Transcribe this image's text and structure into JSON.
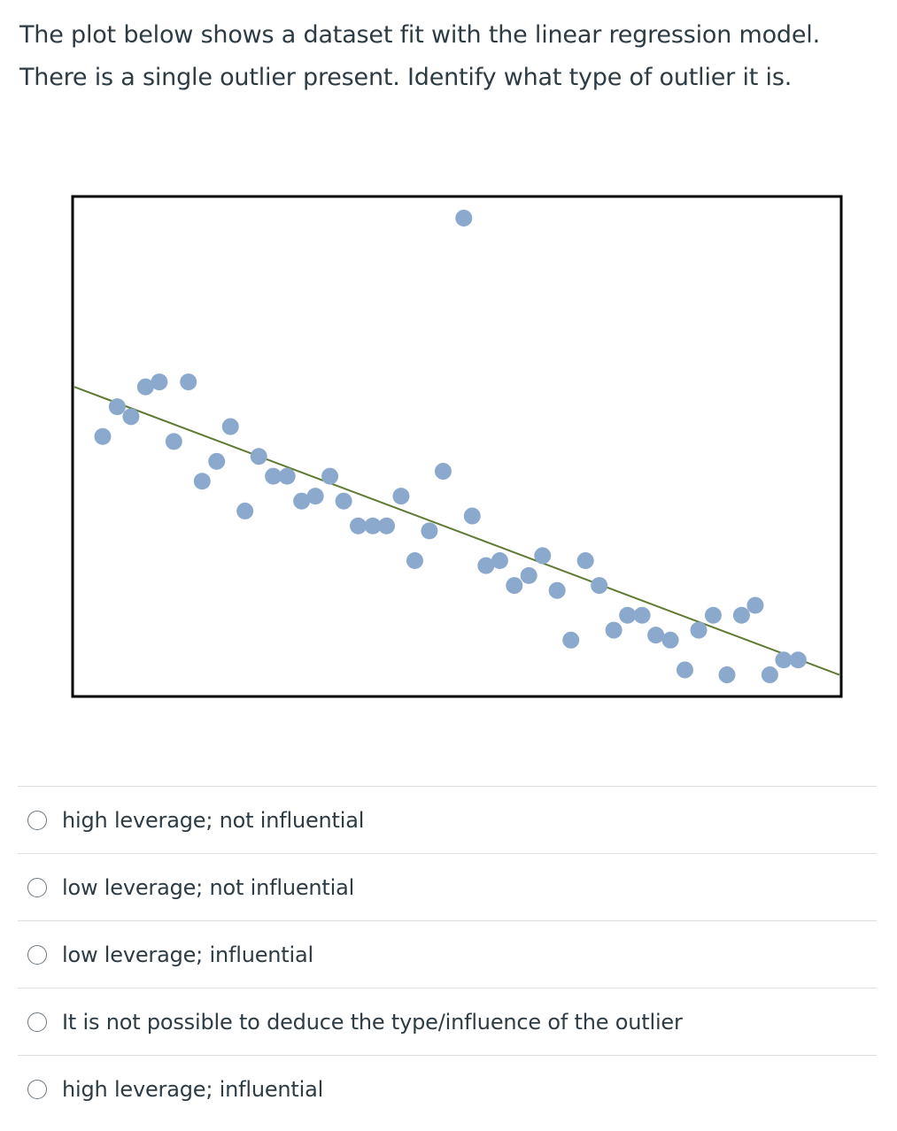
{
  "question": {
    "line1": "The plot below shows a dataset fit with the linear regression model.",
    "line2": "There is a single outlier present. Identify what type of outlier it is."
  },
  "chart_data": {
    "type": "scatter",
    "title": "",
    "xlabel": "",
    "ylabel": "",
    "grid": false,
    "xlim": [
      0,
      100
    ],
    "ylim": [
      0,
      100
    ],
    "point_color": "#8aa9cc",
    "line_color": "#5f7a32",
    "regression_line": {
      "x": [
        0,
        100
      ],
      "y": [
        62,
        4
      ]
    },
    "points": [
      {
        "x": 3.7,
        "y": 52
      },
      {
        "x": 5.6,
        "y": 58
      },
      {
        "x": 7.4,
        "y": 56
      },
      {
        "x": 9.3,
        "y": 62
      },
      {
        "x": 11.1,
        "y": 63
      },
      {
        "x": 13.0,
        "y": 51
      },
      {
        "x": 14.9,
        "y": 63
      },
      {
        "x": 16.7,
        "y": 43
      },
      {
        "x": 18.6,
        "y": 47
      },
      {
        "x": 20.4,
        "y": 54
      },
      {
        "x": 22.3,
        "y": 37
      },
      {
        "x": 24.1,
        "y": 48
      },
      {
        "x": 26.0,
        "y": 44
      },
      {
        "x": 27.8,
        "y": 44
      },
      {
        "x": 29.7,
        "y": 39
      },
      {
        "x": 31.5,
        "y": 40
      },
      {
        "x": 33.4,
        "y": 44
      },
      {
        "x": 35.2,
        "y": 39
      },
      {
        "x": 37.1,
        "y": 34
      },
      {
        "x": 39.0,
        "y": 34
      },
      {
        "x": 40.8,
        "y": 34
      },
      {
        "x": 42.7,
        "y": 40
      },
      {
        "x": 44.5,
        "y": 27
      },
      {
        "x": 46.4,
        "y": 33
      },
      {
        "x": 48.2,
        "y": 45
      },
      {
        "x": 50.9,
        "y": 96
      },
      {
        "x": 52.0,
        "y": 36
      },
      {
        "x": 53.8,
        "y": 26
      },
      {
        "x": 55.6,
        "y": 27
      },
      {
        "x": 57.5,
        "y": 22
      },
      {
        "x": 59.4,
        "y": 24
      },
      {
        "x": 61.2,
        "y": 28
      },
      {
        "x": 63.1,
        "y": 21
      },
      {
        "x": 64.9,
        "y": 11
      },
      {
        "x": 66.8,
        "y": 27
      },
      {
        "x": 68.6,
        "y": 22
      },
      {
        "x": 70.5,
        "y": 13
      },
      {
        "x": 72.3,
        "y": 16
      },
      {
        "x": 74.2,
        "y": 16
      },
      {
        "x": 76.0,
        "y": 12
      },
      {
        "x": 77.9,
        "y": 11
      },
      {
        "x": 79.8,
        "y": 5
      },
      {
        "x": 81.6,
        "y": 13
      },
      {
        "x": 83.5,
        "y": 16
      },
      {
        "x": 85.3,
        "y": 4
      },
      {
        "x": 87.2,
        "y": 16
      },
      {
        "x": 89.0,
        "y": 18
      },
      {
        "x": 90.9,
        "y": 4
      },
      {
        "x": 92.7,
        "y": 7
      },
      {
        "x": 94.6,
        "y": 7
      }
    ]
  },
  "answers": [
    {
      "label": "high leverage; not influential"
    },
    {
      "label": "low leverage; not influential"
    },
    {
      "label": "low leverage; influential"
    },
    {
      "label": "It is not possible to deduce the type/influence of the outlier"
    },
    {
      "label": "high leverage; influential"
    }
  ]
}
